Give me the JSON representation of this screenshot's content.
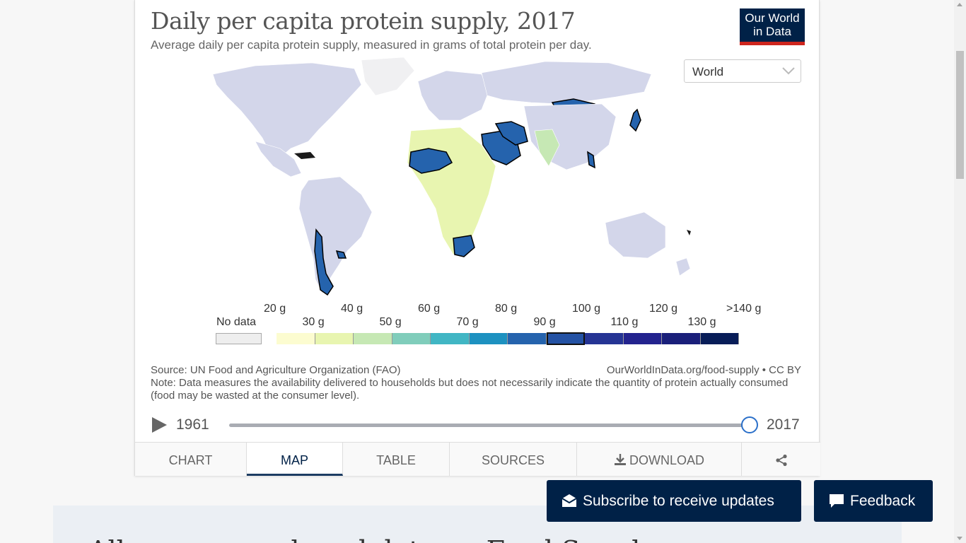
{
  "chart": {
    "title": "Daily per capita protein supply, 2017",
    "subtitle": "Average daily per capita protein supply, measured in grams of total protein per day.",
    "logo_line1": "Our World",
    "logo_line2": "in Data",
    "region_select": "World",
    "source": "Source: UN Food and Agriculture Organization (FAO)",
    "url": "OurWorldInData.org/food-supply • CC BY",
    "note": "Note: Data measures the availability delivered to households but does not necessarily indicate the quantity of protein actually consumed (food may be wasted at the consumer level)."
  },
  "legend": {
    "no_data": "No data",
    "bins": [
      "20 g",
      "30 g",
      "40 g",
      "50 g",
      "60 g",
      "70 g",
      "80 g",
      "90 g",
      "100 g",
      "110 g",
      "120 g",
      "130 g",
      ">140 g"
    ],
    "colors": [
      "#fcfcd0",
      "#e8f5b0",
      "#c6e8b4",
      "#80cdbb",
      "#41b6c4",
      "#1d91c0",
      "#2563ad",
      "#2452a4",
      "#253494",
      "#23238e",
      "#1a1f7a",
      "#081d58"
    ],
    "highlighted_bin": "80–90 g"
  },
  "timeline": {
    "start": "1961",
    "end": "2017",
    "selected_year": 2017
  },
  "tabs": {
    "chart": "CHART",
    "map": "MAP",
    "table": "TABLE",
    "sources": "SOURCES",
    "download": "DOWNLOAD"
  },
  "buttons": {
    "subscribe": "Subscribe to receive updates",
    "feedback": "Feedback"
  },
  "bottom_peek": "All our research and data on Food Supply",
  "icons": {
    "play": "play-icon",
    "download": "download-icon",
    "share": "share-icon",
    "subscribe": "envelope-icon",
    "feedback": "chat-bubble-icon"
  },
  "colors": {
    "land_default": "#d3d6ea",
    "no_data": "#eeeeee",
    "highlight_fill": "#2563ad",
    "brand": "#002147",
    "brand_accent": "#ce261e"
  }
}
